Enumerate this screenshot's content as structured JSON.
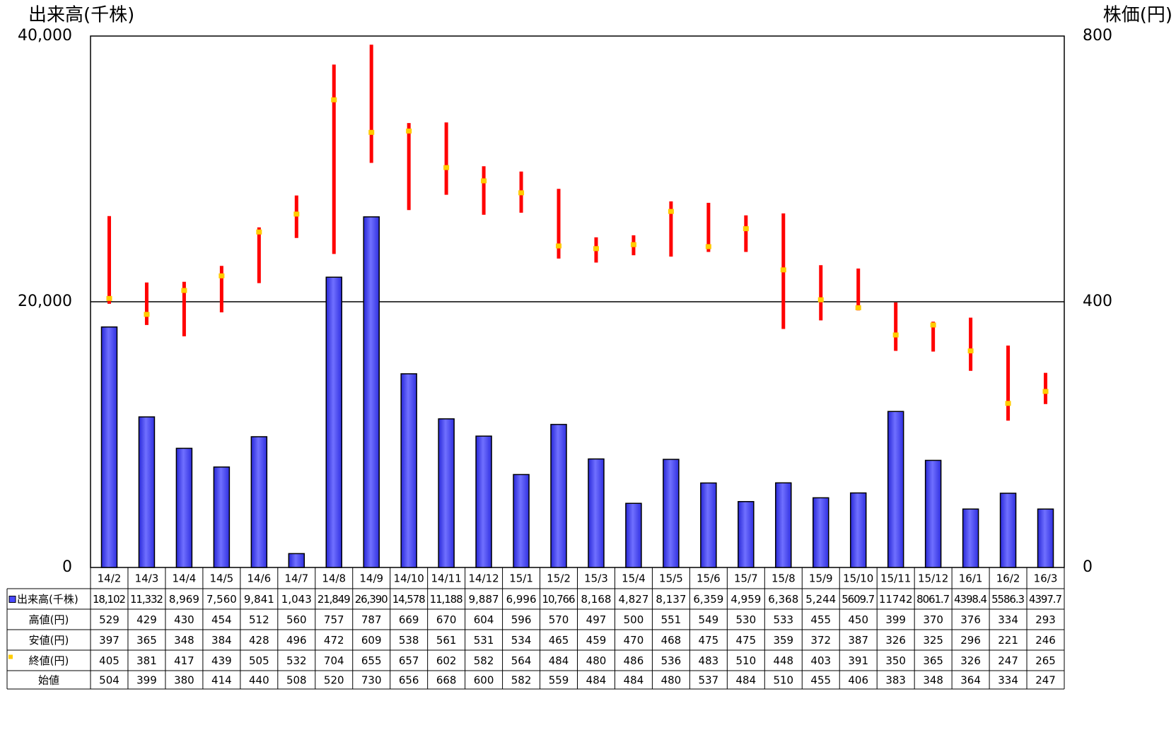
{
  "chart_data": {
    "type": "bar-range",
    "y_axis_label": "出来高(千株)",
    "y2_axis_label": "株価(円)",
    "categories": [
      "14/2",
      "14/3",
      "14/4",
      "14/5",
      "14/6",
      "14/7",
      "14/8",
      "14/9",
      "14/10",
      "14/11",
      "14/12",
      "15/1",
      "15/2",
      "15/3",
      "15/4",
      "15/5",
      "15/6",
      "15/7",
      "15/8",
      "15/9",
      "15/10",
      "15/11",
      "15/12",
      "16/1",
      "16/2",
      "16/3"
    ],
    "ylim": [
      0,
      40000
    ],
    "yticks": [
      0,
      {
        "value": 20000,
        "label": "20,000"
      },
      {
        "value": 40000,
        "label": "40,000"
      }
    ],
    "y2lim": [
      0,
      800
    ],
    "y2ticks": [
      0,
      400,
      800
    ],
    "grid": true,
    "series": [
      {
        "name": "出来高(千株)",
        "color": "#4848ff",
        "kind": "bar",
        "values": [
          18102,
          11332,
          8969,
          7560,
          9841,
          1043,
          21849,
          26390,
          14578,
          11188,
          9887,
          6996,
          10766,
          8168,
          4827,
          8137,
          6359,
          4959,
          6368,
          5244,
          5609.7,
          11742,
          8061.7,
          4398.4,
          5586.3,
          4397.7
        ],
        "value_labels": [
          "18,102",
          "11,332",
          "8,969",
          "7,560",
          "9,841",
          "1,043",
          "21,849",
          "26,390",
          "14,578",
          "11,188",
          "9,887",
          "6,996",
          "10,766",
          "8,168",
          "4,827",
          "8,137",
          "6,359",
          "4,959",
          "6,368",
          "5,244",
          "5609.7",
          "11742",
          "8061.7",
          "4398.4",
          "5586.3",
          "4397.7"
        ]
      },
      {
        "name": "高値(円)",
        "color": "#ff0000",
        "kind": "high",
        "axis": "y2",
        "values": [
          529,
          429,
          430,
          454,
          512,
          560,
          757,
          787,
          669,
          670,
          604,
          596,
          570,
          497,
          500,
          551,
          549,
          530,
          533,
          455,
          450,
          399,
          370,
          376,
          334,
          293
        ]
      },
      {
        "name": "安値(円)",
        "color": "#ff0000",
        "kind": "low",
        "axis": "y2",
        "values": [
          397,
          365,
          348,
          384,
          428,
          496,
          472,
          609,
          538,
          561,
          531,
          534,
          465,
          459,
          470,
          468,
          475,
          475,
          359,
          372,
          387,
          326,
          325,
          296,
          221,
          246
        ]
      },
      {
        "name": "終値(円)",
        "color": "#ffcc00",
        "kind": "close",
        "axis": "y2",
        "values": [
          405,
          381,
          417,
          439,
          505,
          532,
          704,
          655,
          657,
          602,
          582,
          564,
          484,
          480,
          486,
          536,
          483,
          510,
          448,
          403,
          391,
          350,
          365,
          326,
          247,
          265
        ]
      },
      {
        "name": "始値",
        "kind": "open",
        "axis": "y2",
        "values": [
          504,
          399,
          380,
          414,
          440,
          508,
          520,
          730,
          656,
          668,
          600,
          582,
          559,
          484,
          484,
          480,
          537,
          484,
          510,
          455,
          406,
          383,
          348,
          364,
          334,
          247
        ]
      }
    ]
  }
}
